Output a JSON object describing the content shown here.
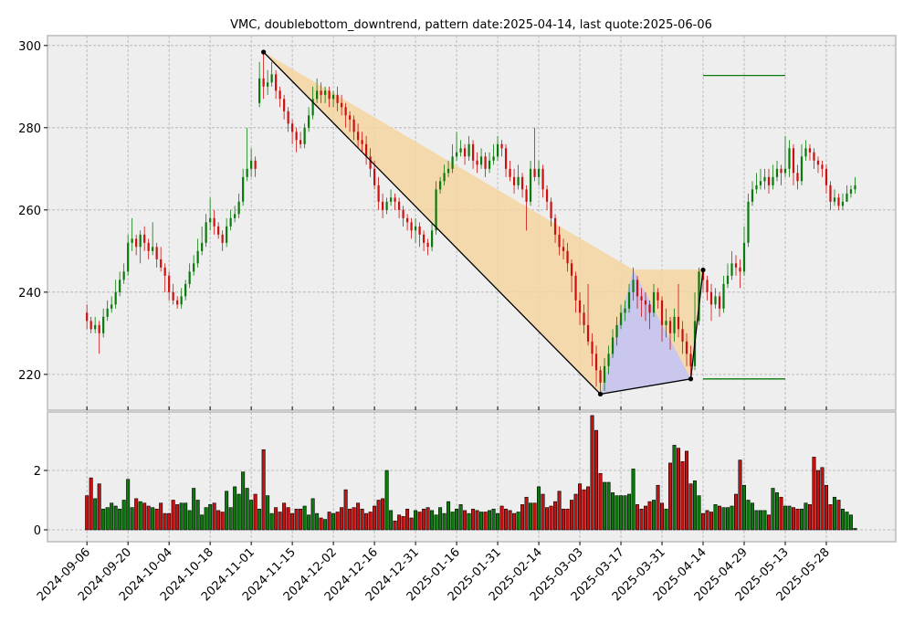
{
  "chart_data": {
    "type": "candlestick",
    "title": "VMC, doublebottom_downtrend, pattern date:2025-04-14, last quote:2025-06-06",
    "up_color": "#0a7a0a",
    "down_color": "#cc1010",
    "xlim": [
      -9.6,
      196.9
    ],
    "xticks": [
      {
        "value": 0,
        "label": "2024-09-06"
      },
      {
        "value": 10,
        "label": "2024-09-20"
      },
      {
        "value": 20,
        "label": "2024-10-04"
      },
      {
        "value": 30,
        "label": "2024-10-18"
      },
      {
        "value": 40,
        "label": "2024-11-01"
      },
      {
        "value": 50,
        "label": "2024-11-15"
      },
      {
        "value": 60,
        "label": "2024-12-02"
      },
      {
        "value": 70,
        "label": "2024-12-16"
      },
      {
        "value": 80,
        "label": "2024-12-31"
      },
      {
        "value": 90,
        "label": "2025-01-16"
      },
      {
        "value": 100,
        "label": "2025-01-31"
      },
      {
        "value": 110,
        "label": "2025-02-14"
      },
      {
        "value": 120,
        "label": "2025-03-03"
      },
      {
        "value": 130,
        "label": "2025-03-17"
      },
      {
        "value": 140,
        "label": "2025-03-31"
      },
      {
        "value": 150,
        "label": "2025-04-14"
      },
      {
        "value": 160,
        "label": "2025-04-29"
      },
      {
        "value": 170,
        "label": "2025-05-13"
      },
      {
        "value": 180,
        "label": "2025-05-28"
      }
    ],
    "ylim": [
      211.3,
      302.4
    ],
    "yticks": [
      220,
      240,
      260,
      280,
      300
    ],
    "volume_ylim": [
      -0.4,
      3.97
    ],
    "volume_yticks": [
      0,
      2
    ],
    "grid": true,
    "ohlc": [
      [
        235,
        237,
        231,
        233
      ],
      [
        233,
        234,
        230,
        231
      ],
      [
        231,
        234,
        230,
        232
      ],
      [
        232,
        233,
        225,
        230
      ],
      [
        230,
        236,
        229,
        234
      ],
      [
        234,
        238,
        233,
        236
      ],
      [
        236,
        239,
        235,
        237
      ],
      [
        237,
        243,
        236,
        240
      ],
      [
        240,
        245,
        239,
        243
      ],
      [
        243,
        247,
        242,
        245
      ],
      [
        245,
        254,
        244,
        252
      ],
      [
        252,
        258,
        250,
        253
      ],
      [
        253,
        254,
        249,
        251
      ],
      [
        251,
        255,
        247,
        254
      ],
      [
        254,
        256,
        250,
        252
      ],
      [
        252,
        253,
        248,
        250
      ],
      [
        250,
        257,
        249,
        251
      ],
      [
        251,
        252,
        246,
        248
      ],
      [
        248,
        251,
        245,
        246
      ],
      [
        246,
        247,
        240,
        244
      ],
      [
        244,
        245,
        238,
        240
      ],
      [
        240,
        242,
        237,
        238
      ],
      [
        238,
        239,
        236,
        237
      ],
      [
        237,
        241,
        236,
        239
      ],
      [
        239,
        243,
        238,
        242
      ],
      [
        242,
        247,
        241,
        245
      ],
      [
        245,
        249,
        244,
        247
      ],
      [
        247,
        253,
        246,
        250
      ],
      [
        250,
        256,
        249,
        252
      ],
      [
        252,
        259,
        251,
        257
      ],
      [
        257,
        263,
        255,
        258
      ],
      [
        258,
        260,
        254,
        256
      ],
      [
        256,
        257,
        253,
        254
      ],
      [
        254,
        255,
        250,
        252
      ],
      [
        252,
        258,
        251,
        256
      ],
      [
        256,
        260,
        255,
        258
      ],
      [
        258,
        261,
        257,
        259
      ],
      [
        259,
        264,
        258,
        262
      ],
      [
        262,
        270,
        261,
        268
      ],
      [
        268,
        280,
        267,
        270
      ],
      [
        270,
        275,
        268,
        272
      ],
      [
        272,
        273,
        268,
        270
      ],
      [
        286,
        296,
        285,
        292
      ],
      [
        292,
        298,
        287,
        290
      ],
      [
        290,
        294,
        288,
        291
      ],
      [
        291,
        296,
        290,
        293
      ],
      [
        293,
        294,
        287,
        289
      ],
      [
        289,
        290,
        285,
        287
      ],
      [
        287,
        288,
        282,
        284
      ],
      [
        284,
        285,
        279,
        281
      ],
      [
        281,
        282,
        276,
        279
      ],
      [
        279,
        280,
        274,
        277
      ],
      [
        277,
        279,
        275,
        276
      ],
      [
        276,
        281,
        275,
        280
      ],
      [
        280,
        285,
        279,
        283
      ],
      [
        283,
        290,
        282,
        287
      ],
      [
        287,
        292,
        286,
        289
      ],
      [
        289,
        291,
        286,
        288
      ],
      [
        288,
        290,
        286,
        289
      ],
      [
        289,
        290,
        285,
        287
      ],
      [
        287,
        289,
        285,
        288
      ],
      [
        288,
        290,
        284,
        286
      ],
      [
        286,
        288,
        283,
        285
      ],
      [
        285,
        286,
        280,
        283
      ],
      [
        283,
        284,
        279,
        282
      ],
      [
        282,
        283,
        277,
        279
      ],
      [
        279,
        281,
        275,
        277
      ],
      [
        277,
        279,
        274,
        276
      ],
      [
        276,
        278,
        271,
        273
      ],
      [
        273,
        275,
        268,
        270
      ],
      [
        270,
        272,
        265,
        266
      ],
      [
        266,
        268,
        260,
        262
      ],
      [
        262,
        264,
        258,
        260
      ],
      [
        260,
        263,
        259,
        262
      ],
      [
        262,
        265,
        261,
        263
      ],
      [
        263,
        264,
        260,
        262
      ],
      [
        262,
        263,
        258,
        260
      ],
      [
        260,
        261,
        256,
        258
      ],
      [
        258,
        259,
        255,
        257
      ],
      [
        257,
        258,
        253,
        255
      ],
      [
        255,
        258,
        252,
        256
      ],
      [
        256,
        257,
        251,
        254
      ],
      [
        254,
        255,
        250,
        252
      ],
      [
        252,
        253,
        249,
        251
      ],
      [
        251,
        257,
        250,
        255
      ],
      [
        255,
        267,
        254,
        265
      ],
      [
        265,
        268,
        264,
        267
      ],
      [
        267,
        271,
        266,
        269
      ],
      [
        269,
        272,
        268,
        270
      ],
      [
        270,
        276,
        269,
        273
      ],
      [
        273,
        279,
        272,
        274
      ],
      [
        274,
        277,
        273,
        275
      ],
      [
        275,
        276,
        271,
        273
      ],
      [
        273,
        278,
        272,
        276
      ],
      [
        276,
        277,
        270,
        272
      ],
      [
        272,
        274,
        269,
        271
      ],
      [
        271,
        275,
        270,
        273
      ],
      [
        273,
        274,
        268,
        270
      ],
      [
        270,
        274,
        269,
        272
      ],
      [
        272,
        276,
        271,
        273
      ],
      [
        273,
        278,
        272,
        276
      ],
      [
        276,
        277,
        273,
        275
      ],
      [
        275,
        276,
        268,
        270
      ],
      [
        270,
        272,
        267,
        268
      ],
      [
        268,
        270,
        264,
        266
      ],
      [
        266,
        271,
        265,
        268
      ],
      [
        268,
        269,
        263,
        265
      ],
      [
        265,
        266,
        255,
        262
      ],
      [
        262,
        272,
        261,
        270
      ],
      [
        270,
        280,
        267,
        268
      ],
      [
        268,
        272,
        266,
        270
      ],
      [
        270,
        271,
        263,
        265
      ],
      [
        265,
        266,
        260,
        262
      ],
      [
        262,
        263,
        256,
        258
      ],
      [
        258,
        259,
        252,
        254
      ],
      [
        254,
        256,
        249,
        251
      ],
      [
        251,
        253,
        248,
        250
      ],
      [
        250,
        252,
        245,
        247
      ],
      [
        247,
        248,
        240,
        244
      ],
      [
        244,
        245,
        235,
        238
      ],
      [
        238,
        240,
        232,
        235
      ],
      [
        235,
        237,
        230,
        232
      ],
      [
        232,
        242,
        227,
        228
      ],
      [
        228,
        230,
        222,
        225
      ],
      [
        225,
        227,
        217,
        221
      ],
      [
        221,
        222,
        215,
        218
      ],
      [
        218,
        224,
        216,
        222
      ],
      [
        222,
        227,
        220,
        225
      ],
      [
        225,
        231,
        224,
        229
      ],
      [
        229,
        234,
        227,
        232
      ],
      [
        232,
        237,
        231,
        235
      ],
      [
        235,
        238,
        233,
        236
      ],
      [
        236,
        242,
        235,
        240
      ],
      [
        240,
        246,
        238,
        243
      ],
      [
        243,
        244,
        236,
        239
      ],
      [
        239,
        241,
        234,
        238
      ],
      [
        238,
        240,
        233,
        237
      ],
      [
        237,
        238,
        231,
        235
      ],
      [
        235,
        242,
        234,
        240
      ],
      [
        240,
        241,
        236,
        238
      ],
      [
        238,
        239,
        228,
        232
      ],
      [
        232,
        236,
        229,
        233
      ],
      [
        233,
        234,
        226,
        230
      ],
      [
        230,
        236,
        228,
        234
      ],
      [
        234,
        242,
        229,
        231
      ],
      [
        231,
        233,
        225,
        228
      ],
      [
        228,
        230,
        222,
        225
      ],
      [
        225,
        227,
        219,
        222
      ],
      [
        222,
        240,
        221,
        233
      ],
      [
        233,
        246,
        232,
        245
      ],
      [
        245,
        246,
        240,
        243
      ],
      [
        243,
        244,
        238,
        240
      ],
      [
        240,
        242,
        233,
        237
      ],
      [
        237,
        241,
        236,
        239
      ],
      [
        239,
        240,
        234,
        236
      ],
      [
        236,
        244,
        235,
        242
      ],
      [
        242,
        247,
        241,
        244
      ],
      [
        244,
        250,
        243,
        247
      ],
      [
        247,
        249,
        244,
        246
      ],
      [
        246,
        248,
        241,
        245
      ],
      [
        245,
        256,
        244,
        252
      ],
      [
        252,
        264,
        251,
        262
      ],
      [
        262,
        267,
        261,
        265
      ],
      [
        265,
        269,
        264,
        266
      ],
      [
        266,
        270,
        265,
        267
      ],
      [
        267,
        270,
        265,
        268
      ],
      [
        268,
        270,
        264,
        266
      ],
      [
        266,
        271,
        265,
        268
      ],
      [
        268,
        272,
        267,
        270
      ],
      [
        270,
        271,
        266,
        269
      ],
      [
        269,
        278,
        268,
        270
      ],
      [
        270,
        277,
        268,
        275
      ],
      [
        275,
        276,
        266,
        269
      ],
      [
        269,
        271,
        265,
        267
      ],
      [
        267,
        276,
        266,
        273
      ],
      [
        273,
        277,
        272,
        275
      ],
      [
        275,
        276,
        272,
        274
      ],
      [
        274,
        275,
        270,
        272
      ],
      [
        272,
        273,
        269,
        271
      ],
      [
        271,
        272,
        268,
        270
      ],
      [
        270,
        271,
        264,
        266
      ],
      [
        266,
        267,
        260,
        262
      ],
      [
        262,
        265,
        261,
        263
      ],
      [
        263,
        264,
        260,
        261
      ],
      [
        261,
        264,
        260,
        262
      ],
      [
        262,
        266,
        262,
        264
      ],
      [
        264,
        266,
        263,
        265
      ],
      [
        265,
        268,
        264,
        266
      ]
    ],
    "volume": [
      1.15,
      1.75,
      1.05,
      1.55,
      0.7,
      0.75,
      0.9,
      0.8,
      0.7,
      1.0,
      1.7,
      0.75,
      1.05,
      0.95,
      0.9,
      0.8,
      0.75,
      0.7,
      0.9,
      0.55,
      0.55,
      1.0,
      0.85,
      0.9,
      0.9,
      0.65,
      1.4,
      1.0,
      0.5,
      0.75,
      0.85,
      0.9,
      0.65,
      0.6,
      1.3,
      0.75,
      1.45,
      1.2,
      1.95,
      1.4,
      1.0,
      1.2,
      0.7,
      2.7,
      1.15,
      0.55,
      0.75,
      0.6,
      0.9,
      0.75,
      0.55,
      0.7,
      0.7,
      0.8,
      0.5,
      1.05,
      0.55,
      0.4,
      0.35,
      0.6,
      0.55,
      0.6,
      0.75,
      1.35,
      0.7,
      0.75,
      0.9,
      0.7,
      0.55,
      0.6,
      0.8,
      1.0,
      1.05,
      2.0,
      0.65,
      0.3,
      0.5,
      0.45,
      0.7,
      0.4,
      0.65,
      0.6,
      0.7,
      0.75,
      0.65,
      0.5,
      0.75,
      0.55,
      0.95,
      0.6,
      0.7,
      0.85,
      0.65,
      0.55,
      0.7,
      0.65,
      0.6,
      0.6,
      0.65,
      0.7,
      0.55,
      0.8,
      0.7,
      0.65,
      0.55,
      0.6,
      0.85,
      1.1,
      0.9,
      0.9,
      1.45,
      1.2,
      0.75,
      0.8,
      0.95,
      1.3,
      0.7,
      0.7,
      1.0,
      1.2,
      1.55,
      1.35,
      1.45,
      3.85,
      3.35,
      1.9,
      1.6,
      1.6,
      1.25,
      1.15,
      1.15,
      1.15,
      1.2,
      2.05,
      0.85,
      0.7,
      0.8,
      0.95,
      1.0,
      1.5,
      0.9,
      0.7,
      2.25,
      2.85,
      2.75,
      2.3,
      2.65,
      1.55,
      1.65,
      1.15,
      0.55,
      0.65,
      0.6,
      0.85,
      0.8,
      0.75,
      0.75,
      0.8,
      1.2,
      2.35,
      1.5,
      1.0,
      0.9,
      0.65,
      0.65,
      0.65,
      0.5,
      1.4,
      1.25,
      1.1,
      0.8,
      0.8,
      0.75,
      0.7,
      0.7,
      0.9,
      0.85,
      2.45,
      2.0,
      2.1,
      1.5,
      0.85,
      1.1,
      1.0,
      0.7,
      0.6,
      0.5,
      0.05
    ],
    "pattern": {
      "points": [
        {
          "x": 43,
          "y": 298.4
        },
        {
          "x": 125,
          "y": 215.2
        },
        {
          "x": 147,
          "y": 218.9
        },
        {
          "x": 150,
          "y": 245.4
        }
      ],
      "upper_vertex": {
        "x": 133,
        "y": 245.5
      },
      "fill_color": "#f5d5a0",
      "triangle_color": "#c4c4f4",
      "line_color": "#000000"
    },
    "levels": {
      "x": [
        150,
        170
      ],
      "values": [
        292.7,
        218.9
      ],
      "color": "#0a7a0a"
    }
  }
}
